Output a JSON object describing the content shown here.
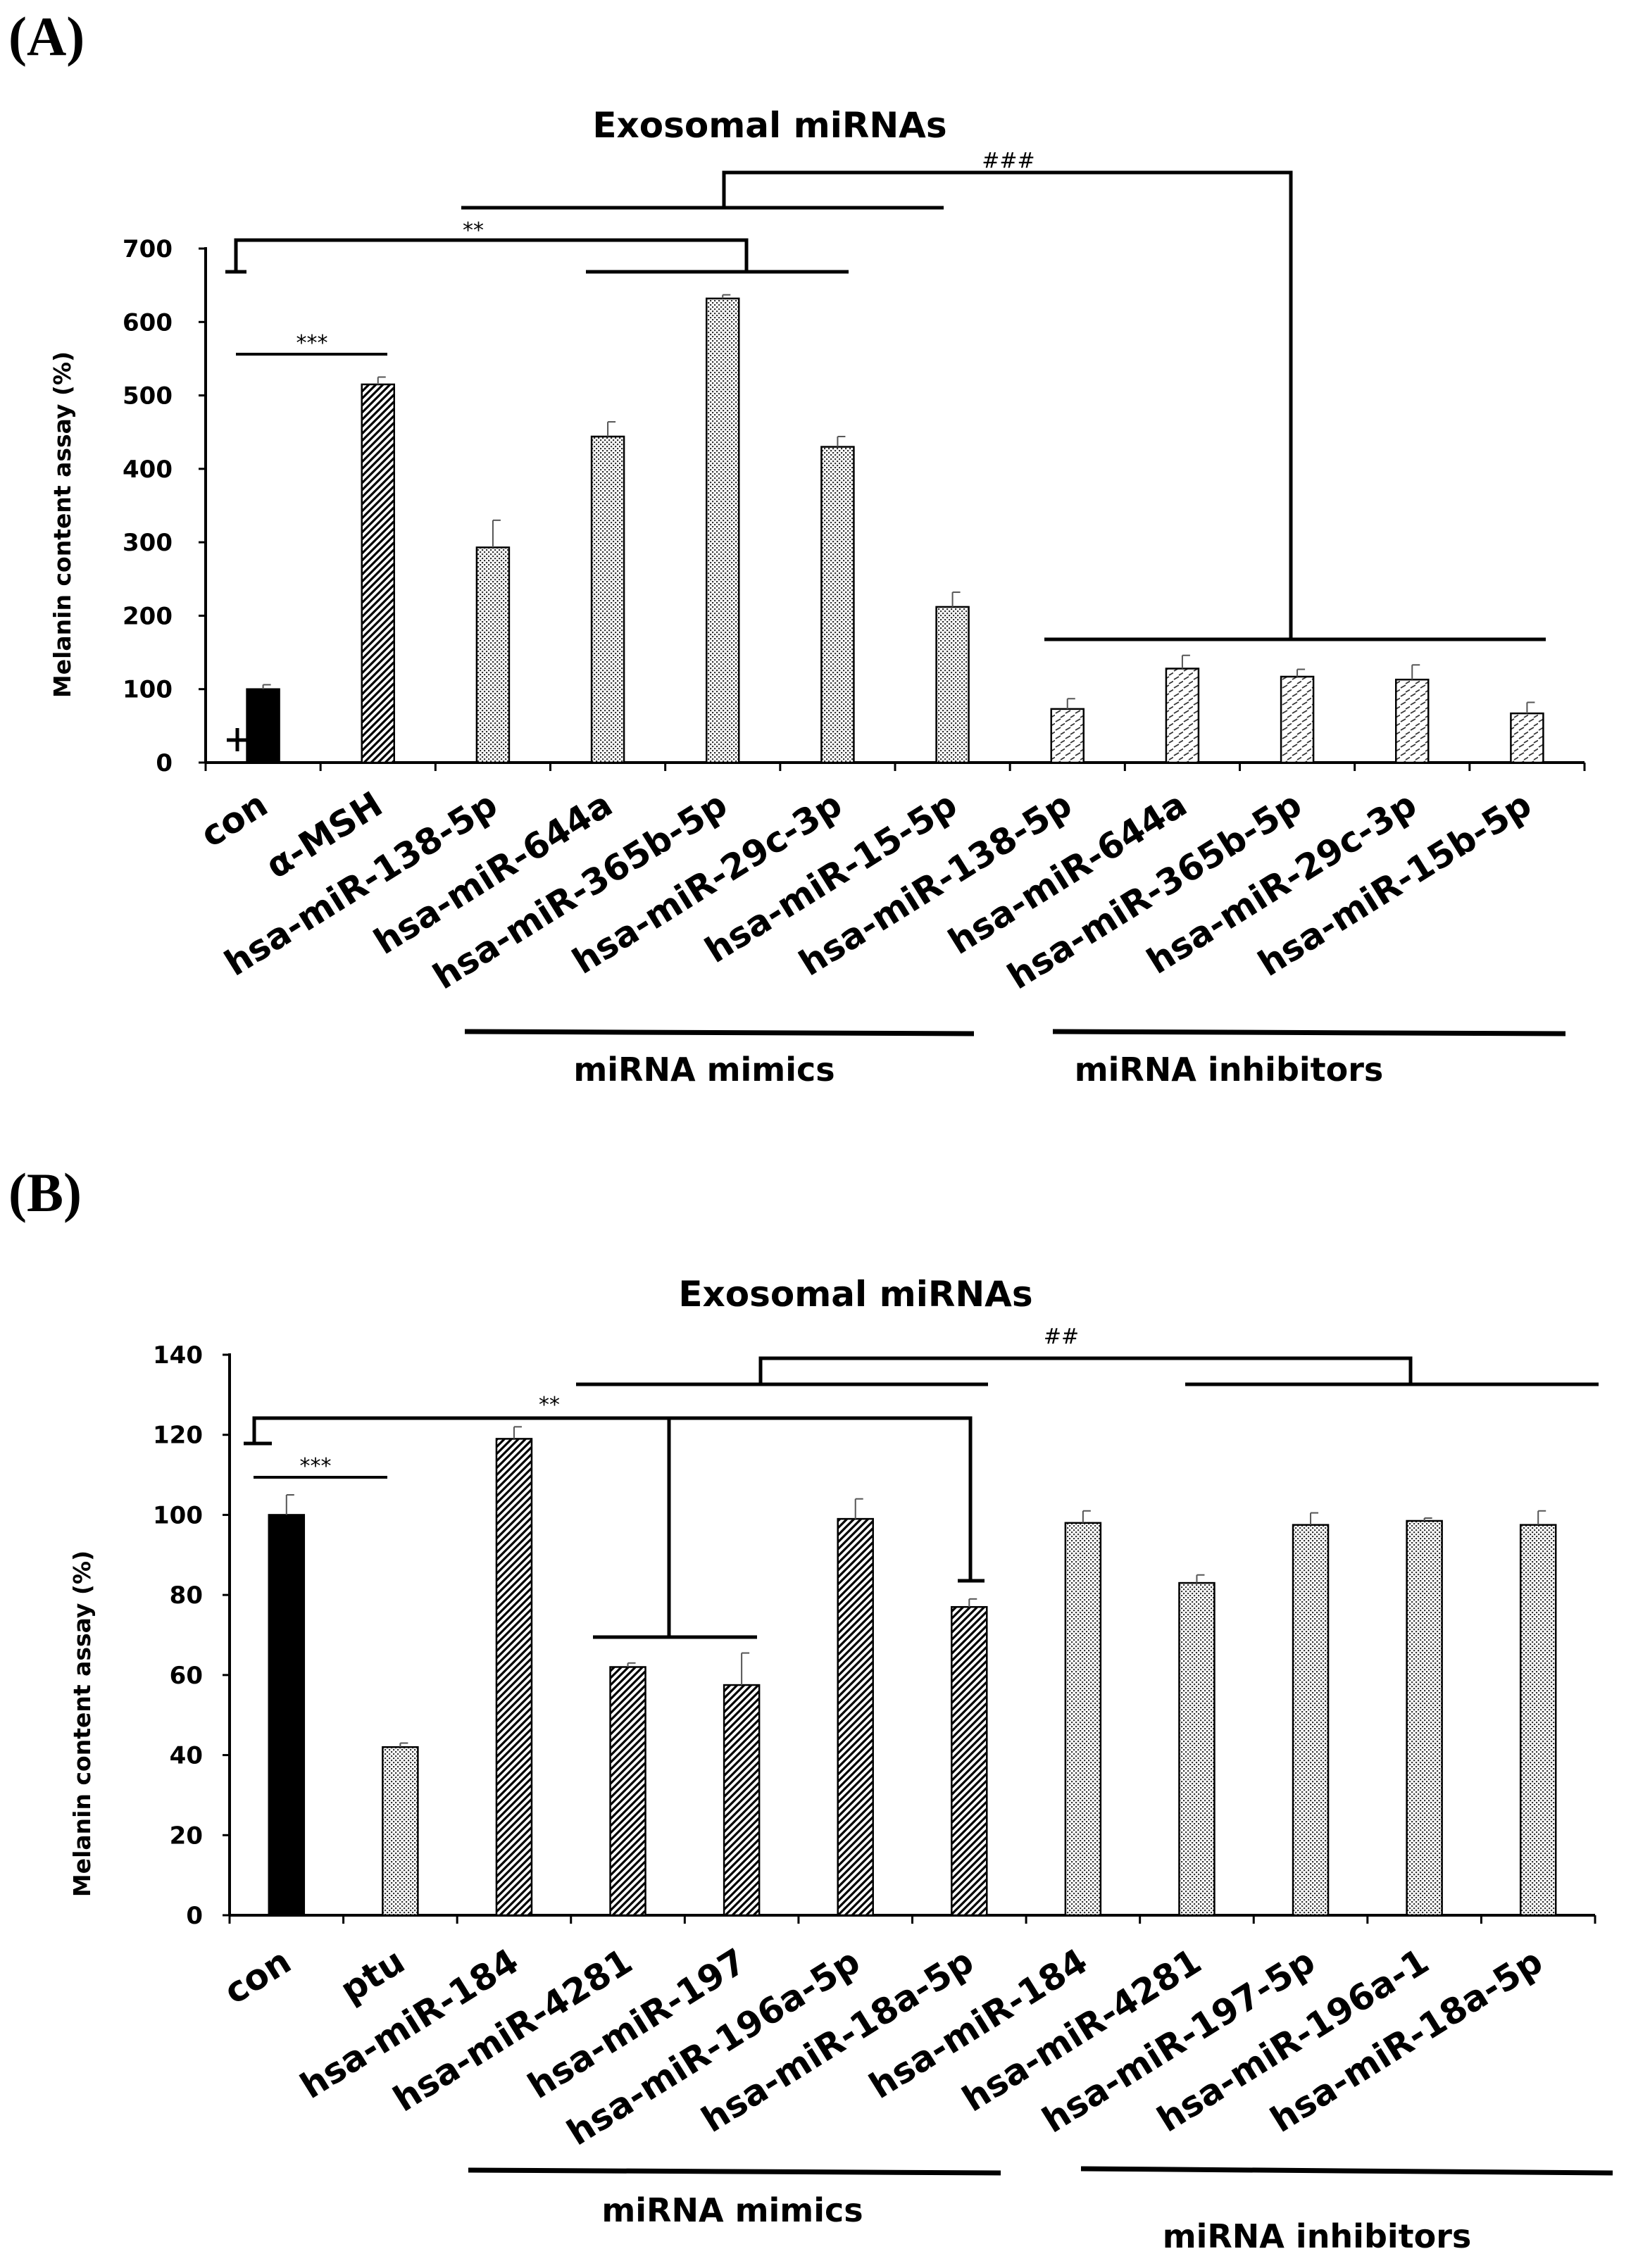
{
  "chart_data": [
    {
      "panel_label": "(A)",
      "type": "bar",
      "title": "Exosomal miRNAs",
      "ylabel": "Melanin content assay (%)",
      "xlabel": "",
      "ylim": [
        0,
        700
      ],
      "yticks": [
        0,
        100,
        200,
        300,
        400,
        500,
        600,
        700
      ],
      "categories": [
        "con",
        "α-MSH",
        "hsa-miR-138-5p",
        "hsa-miR-644a",
        "hsa-miR-365b-5p",
        "hsa-miR-29c-3p",
        "hsa-miR-15-5p",
        "hsa-miR-138-5p",
        "hsa-miR-644a",
        "hsa-miR-365b-5p",
        "hsa-miR-29c-3p",
        "hsa-miR-15b-5p"
      ],
      "values": [
        100,
        515,
        293,
        444,
        632,
        430,
        212,
        73,
        128,
        117,
        113,
        67
      ],
      "errors": [
        6,
        10,
        37,
        20,
        5,
        14,
        20,
        14,
        18,
        10,
        20,
        15
      ],
      "patterns": [
        "solid",
        "diagonal",
        "dots",
        "dots",
        "dots",
        "dots",
        "dots",
        "dashes",
        "dashes",
        "dashes",
        "dashes",
        "dashes"
      ],
      "groups": [
        {
          "label": "miRNA mimics",
          "from": 2,
          "to": 6
        },
        {
          "label": "miRNA inhibitors",
          "from": 7,
          "to": 11
        }
      ],
      "annotations": [
        {
          "text": "***",
          "compare": "con vs α-MSH"
        },
        {
          "text": "**",
          "compare": "con vs miRNA mimics"
        },
        {
          "text": "###",
          "compare": "miRNA mimics vs miRNA inhibitors"
        }
      ]
    },
    {
      "panel_label": "(B)",
      "type": "bar",
      "title": "Exosomal miRNAs",
      "ylabel": "Melanin content assay (%)",
      "xlabel": "",
      "ylim": [
        0,
        140
      ],
      "yticks": [
        0,
        20,
        40,
        60,
        80,
        100,
        120,
        140
      ],
      "categories": [
        "con",
        "ptu",
        "hsa-miR-184",
        "hsa-miR-4281",
        "hsa-miR-197",
        "hsa-miR-196a-5p",
        "hsa-miR-18a-5p",
        "hsa-miR-184",
        "hsa-miR-4281",
        "hsa-miR-197-5p",
        "hsa-miR-196a-1",
        "hsa-miR-18a-5p"
      ],
      "values": [
        100,
        42,
        119,
        62,
        57.5,
        99,
        77,
        98,
        83,
        97.5,
        98.5,
        97.5
      ],
      "errors": [
        5,
        1,
        3,
        1,
        8,
        5,
        2,
        3,
        2,
        3,
        0.7,
        3.5
      ],
      "patterns": [
        "solid",
        "dots",
        "diagonal",
        "diagonal",
        "diagonal",
        "diagonal",
        "diagonal",
        "dots",
        "dots",
        "dots",
        "dots",
        "dots"
      ],
      "groups": [
        {
          "label": "miRNA mimics",
          "from": 2,
          "to": 6
        },
        {
          "label": "miRNA inhibitors",
          "from": 7,
          "to": 11
        }
      ],
      "annotations": [
        {
          "text": "***",
          "compare": "con vs ptu"
        },
        {
          "text": "**",
          "compare": "con vs miRNA mimics"
        },
        {
          "text": "##",
          "compare": "miRNA mimics vs miRNA inhibitors"
        }
      ]
    }
  ]
}
